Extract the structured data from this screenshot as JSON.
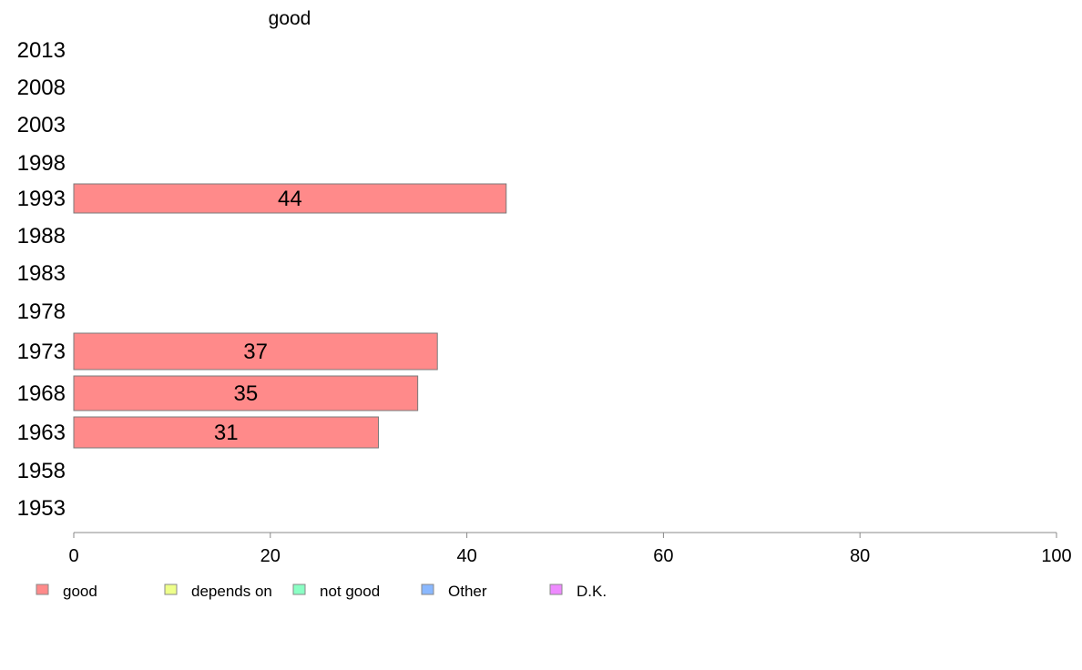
{
  "chart_data": {
    "type": "bar",
    "orientation": "horizontal",
    "title": "good",
    "categories": [
      "2013",
      "2008",
      "2003",
      "1998",
      "1993",
      "1988",
      "1983",
      "1978",
      "1973",
      "1968",
      "1963",
      "1958",
      "1953"
    ],
    "series": [
      {
        "name": "good",
        "color": "#ff8a8a",
        "values": [
          null,
          null,
          null,
          null,
          44,
          null,
          null,
          null,
          37,
          35,
          31,
          null,
          null
        ]
      }
    ],
    "xlim": [
      0,
      100
    ],
    "xticks": [
      0,
      20,
      40,
      60,
      80,
      100
    ],
    "legend": [
      {
        "label": "good",
        "color": "#ff8a8a"
      },
      {
        "label": "depends on",
        "color": "#eeff8a"
      },
      {
        "label": "not good",
        "color": "#8affc4"
      },
      {
        "label": "Other",
        "color": "#8ab8ff"
      },
      {
        "label": "D.K.",
        "color": "#ee8aff"
      }
    ],
    "legend_position": "bottom",
    "grid": false
  }
}
